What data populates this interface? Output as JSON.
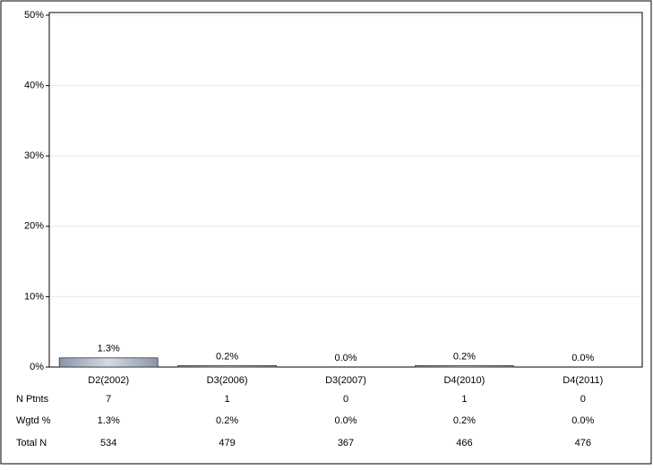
{
  "chart_data": {
    "type": "bar",
    "categories": [
      "D2(2002)",
      "D3(2006)",
      "D3(2007)",
      "D4(2010)",
      "D4(2011)"
    ],
    "values": [
      1.3,
      0.2,
      0.0,
      0.2,
      0.0
    ],
    "value_labels": [
      "1.3%",
      "0.2%",
      "0.0%",
      "0.2%",
      "0.0%"
    ],
    "color": "#aab4c4",
    "ylim": [
      0,
      50
    ],
    "yticks": [
      {
        "value": 0,
        "label": "0%"
      },
      {
        "value": 10,
        "label": "10%"
      },
      {
        "value": 20,
        "label": "20%"
      },
      {
        "value": 30,
        "label": "30%"
      },
      {
        "value": 40,
        "label": "40%"
      },
      {
        "value": 50,
        "label": "50%"
      }
    ],
    "grid": true,
    "table": [
      {
        "label": "N Ptnts",
        "values": [
          7,
          1,
          0,
          1,
          0
        ]
      },
      {
        "label": "Wgtd %",
        "values": [
          "1.3%",
          "0.2%",
          "0.0%",
          "0.2%",
          "0.0%"
        ]
      },
      {
        "label": "Total N",
        "values": [
          534,
          479,
          367,
          466,
          476
        ]
      }
    ]
  }
}
